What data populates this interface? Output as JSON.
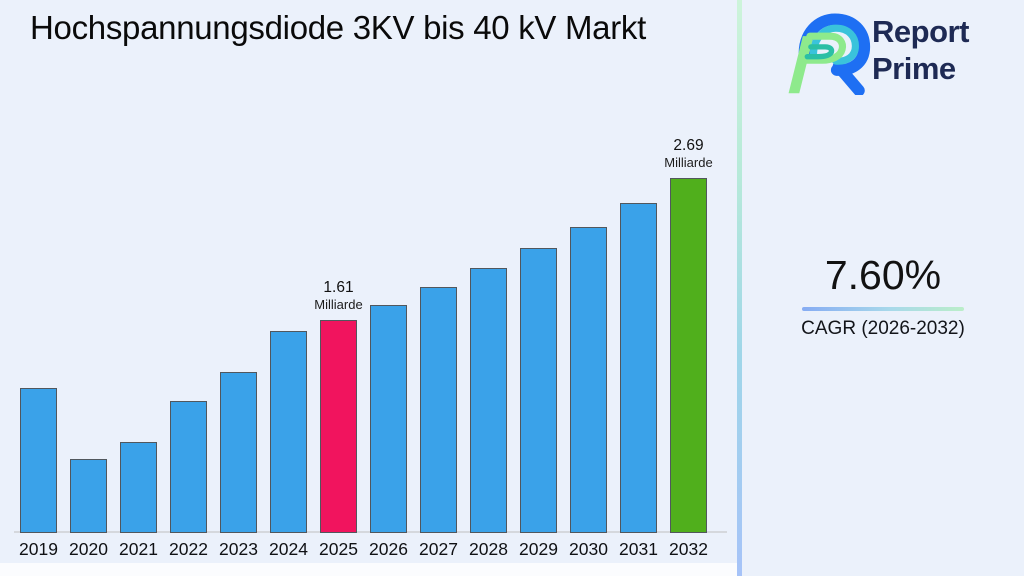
{
  "title": "Hochspannungsdiode 3KV bis 40 kV Markt",
  "logo": {
    "line1": "Report",
    "line2": "Prime"
  },
  "cagr": {
    "value": "7.60%",
    "label": "CAGR (2026-2032)"
  },
  "chart_data": {
    "type": "bar",
    "title": "Hochspannungsdiode 3KV bis 40 kV Markt",
    "unit": "Milliarde",
    "categories": [
      "2019",
      "2020",
      "2021",
      "2022",
      "2023",
      "2024",
      "2025",
      "2026",
      "2027",
      "2028",
      "2029",
      "2030",
      "2031",
      "2032"
    ],
    "values": [
      1.1,
      0.56,
      0.69,
      1.0,
      1.22,
      1.53,
      1.61,
      1.73,
      1.86,
      2.01,
      2.16,
      2.32,
      2.5,
      2.69
    ],
    "default_bar_color": "#3AA2E9",
    "bar_colors": {
      "2025": "#F1145E",
      "2032": "#50AF1C"
    },
    "annotations": [
      {
        "category": "2025",
        "value_label": "1.61",
        "unit_label": "Milliarde"
      },
      {
        "category": "2032",
        "value_label": "2.69",
        "unit_label": "Milliarde"
      }
    ],
    "xlabel": "",
    "ylabel": "",
    "ylim": [
      0,
      3
    ],
    "grid": false,
    "legend": false
  },
  "colors": {
    "background": "#EBF1FB",
    "bar_default": "#3AA2E9",
    "bar_highlight_2025": "#F1145E",
    "bar_highlight_2032": "#50AF1C",
    "bar_border": "#51575D",
    "logo_navy": "#1E2A54",
    "logo_blue": "#1E6FF3",
    "logo_cyan": "#3AC3DB",
    "logo_green": "#8EEA8C",
    "logo_teal": "#2BBFA5",
    "divider_top": "#CDF4DA",
    "divider_bottom": "#A6C3F8",
    "underline_left": "#86ACF3",
    "underline_right": "#BBEEC9"
  }
}
